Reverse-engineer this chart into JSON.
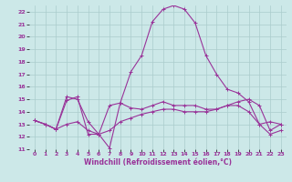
{
  "xlabel": "Windchill (Refroidissement éolien,°C)",
  "background_color": "#cce8e8",
  "grid_color": "#aacccc",
  "line_color": "#993399",
  "xlim": [
    -0.5,
    23.5
  ],
  "ylim": [
    11,
    22.5
  ],
  "xticks": [
    0,
    1,
    2,
    3,
    4,
    5,
    6,
    7,
    8,
    9,
    10,
    11,
    12,
    13,
    14,
    15,
    16,
    17,
    18,
    19,
    20,
    21,
    22,
    23
  ],
  "yticks": [
    11,
    12,
    13,
    14,
    15,
    16,
    17,
    18,
    19,
    20,
    21,
    22
  ],
  "line1_x": [
    0,
    1,
    2,
    3,
    4,
    5,
    6,
    7,
    8,
    9,
    10,
    11,
    12,
    13,
    14,
    15,
    16,
    17,
    18,
    19,
    20,
    21,
    22,
    23
  ],
  "line1_y": [
    13.3,
    13.0,
    12.6,
    14.9,
    15.2,
    12.2,
    12.2,
    11.1,
    14.7,
    17.2,
    18.5,
    21.2,
    22.2,
    22.5,
    22.2,
    21.1,
    18.5,
    17.0,
    15.8,
    15.5,
    14.8,
    13.0,
    13.2,
    13.0
  ],
  "line2_x": [
    0,
    1,
    2,
    3,
    4,
    5,
    6,
    7,
    8,
    9,
    10,
    11,
    12,
    13,
    14,
    15,
    16,
    17,
    18,
    19,
    20,
    21,
    22,
    23
  ],
  "line2_y": [
    13.3,
    13.0,
    12.6,
    15.2,
    15.0,
    13.2,
    12.2,
    14.5,
    14.7,
    14.3,
    14.2,
    14.5,
    14.8,
    14.5,
    14.5,
    14.5,
    14.2,
    14.2,
    14.5,
    14.8,
    15.0,
    14.5,
    12.5,
    13.0
  ],
  "line3_x": [
    0,
    1,
    2,
    3,
    4,
    5,
    6,
    7,
    8,
    9,
    10,
    11,
    12,
    13,
    14,
    15,
    16,
    17,
    18,
    19,
    20,
    21,
    22,
    23
  ],
  "line3_y": [
    13.3,
    13.0,
    12.6,
    13.0,
    13.2,
    12.5,
    12.2,
    12.5,
    13.2,
    13.5,
    13.8,
    14.0,
    14.2,
    14.2,
    14.0,
    14.0,
    14.0,
    14.2,
    14.5,
    14.5,
    14.0,
    13.0,
    12.2,
    12.5
  ]
}
